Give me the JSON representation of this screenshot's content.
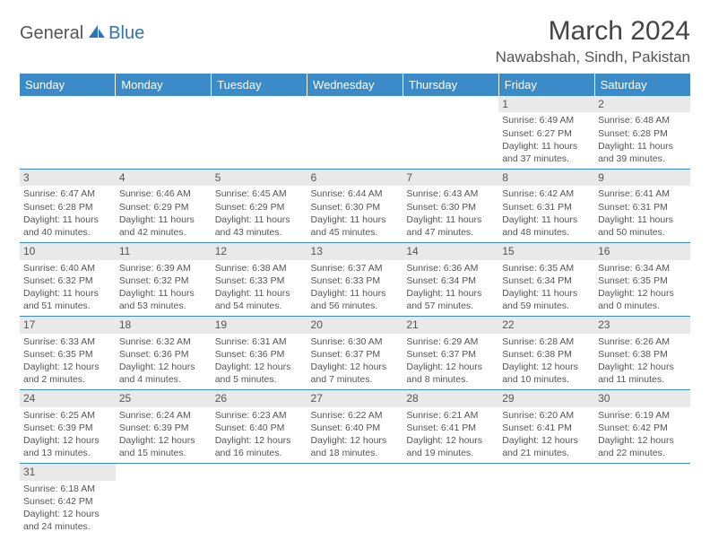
{
  "brand": {
    "part1": "General",
    "part2": "Blue"
  },
  "title": "March 2024",
  "location": "Nawabshah, Sindh, Pakistan",
  "colors": {
    "header_bg": "#3b8bc8",
    "header_fg": "#ffffff",
    "daynum_bg": "#e9e9e9",
    "text": "#555555",
    "rule": "#3b8bc8"
  },
  "dayHeaders": [
    "Sunday",
    "Monday",
    "Tuesday",
    "Wednesday",
    "Thursday",
    "Friday",
    "Saturday"
  ],
  "weeks": [
    [
      {
        "blank": true
      },
      {
        "blank": true
      },
      {
        "blank": true
      },
      {
        "blank": true
      },
      {
        "blank": true
      },
      {
        "num": "1",
        "sunrise": "6:49 AM",
        "sunset": "6:27 PM",
        "daylight": "11 hours and 37 minutes."
      },
      {
        "num": "2",
        "sunrise": "6:48 AM",
        "sunset": "6:28 PM",
        "daylight": "11 hours and 39 minutes."
      }
    ],
    [
      {
        "num": "3",
        "sunrise": "6:47 AM",
        "sunset": "6:28 PM",
        "daylight": "11 hours and 40 minutes."
      },
      {
        "num": "4",
        "sunrise": "6:46 AM",
        "sunset": "6:29 PM",
        "daylight": "11 hours and 42 minutes."
      },
      {
        "num": "5",
        "sunrise": "6:45 AM",
        "sunset": "6:29 PM",
        "daylight": "11 hours and 43 minutes."
      },
      {
        "num": "6",
        "sunrise": "6:44 AM",
        "sunset": "6:30 PM",
        "daylight": "11 hours and 45 minutes."
      },
      {
        "num": "7",
        "sunrise": "6:43 AM",
        "sunset": "6:30 PM",
        "daylight": "11 hours and 47 minutes."
      },
      {
        "num": "8",
        "sunrise": "6:42 AM",
        "sunset": "6:31 PM",
        "daylight": "11 hours and 48 minutes."
      },
      {
        "num": "9",
        "sunrise": "6:41 AM",
        "sunset": "6:31 PM",
        "daylight": "11 hours and 50 minutes."
      }
    ],
    [
      {
        "num": "10",
        "sunrise": "6:40 AM",
        "sunset": "6:32 PM",
        "daylight": "11 hours and 51 minutes."
      },
      {
        "num": "11",
        "sunrise": "6:39 AM",
        "sunset": "6:32 PM",
        "daylight": "11 hours and 53 minutes."
      },
      {
        "num": "12",
        "sunrise": "6:38 AM",
        "sunset": "6:33 PM",
        "daylight": "11 hours and 54 minutes."
      },
      {
        "num": "13",
        "sunrise": "6:37 AM",
        "sunset": "6:33 PM",
        "daylight": "11 hours and 56 minutes."
      },
      {
        "num": "14",
        "sunrise": "6:36 AM",
        "sunset": "6:34 PM",
        "daylight": "11 hours and 57 minutes."
      },
      {
        "num": "15",
        "sunrise": "6:35 AM",
        "sunset": "6:34 PM",
        "daylight": "11 hours and 59 minutes."
      },
      {
        "num": "16",
        "sunrise": "6:34 AM",
        "sunset": "6:35 PM",
        "daylight": "12 hours and 0 minutes."
      }
    ],
    [
      {
        "num": "17",
        "sunrise": "6:33 AM",
        "sunset": "6:35 PM",
        "daylight": "12 hours and 2 minutes."
      },
      {
        "num": "18",
        "sunrise": "6:32 AM",
        "sunset": "6:36 PM",
        "daylight": "12 hours and 4 minutes."
      },
      {
        "num": "19",
        "sunrise": "6:31 AM",
        "sunset": "6:36 PM",
        "daylight": "12 hours and 5 minutes."
      },
      {
        "num": "20",
        "sunrise": "6:30 AM",
        "sunset": "6:37 PM",
        "daylight": "12 hours and 7 minutes."
      },
      {
        "num": "21",
        "sunrise": "6:29 AM",
        "sunset": "6:37 PM",
        "daylight": "12 hours and 8 minutes."
      },
      {
        "num": "22",
        "sunrise": "6:28 AM",
        "sunset": "6:38 PM",
        "daylight": "12 hours and 10 minutes."
      },
      {
        "num": "23",
        "sunrise": "6:26 AM",
        "sunset": "6:38 PM",
        "daylight": "12 hours and 11 minutes."
      }
    ],
    [
      {
        "num": "24",
        "sunrise": "6:25 AM",
        "sunset": "6:39 PM",
        "daylight": "12 hours and 13 minutes."
      },
      {
        "num": "25",
        "sunrise": "6:24 AM",
        "sunset": "6:39 PM",
        "daylight": "12 hours and 15 minutes."
      },
      {
        "num": "26",
        "sunrise": "6:23 AM",
        "sunset": "6:40 PM",
        "daylight": "12 hours and 16 minutes."
      },
      {
        "num": "27",
        "sunrise": "6:22 AM",
        "sunset": "6:40 PM",
        "daylight": "12 hours and 18 minutes."
      },
      {
        "num": "28",
        "sunrise": "6:21 AM",
        "sunset": "6:41 PM",
        "daylight": "12 hours and 19 minutes."
      },
      {
        "num": "29",
        "sunrise": "6:20 AM",
        "sunset": "6:41 PM",
        "daylight": "12 hours and 21 minutes."
      },
      {
        "num": "30",
        "sunrise": "6:19 AM",
        "sunset": "6:42 PM",
        "daylight": "12 hours and 22 minutes."
      }
    ],
    [
      {
        "num": "31",
        "sunrise": "6:18 AM",
        "sunset": "6:42 PM",
        "daylight": "12 hours and 24 minutes."
      },
      {
        "blank": true
      },
      {
        "blank": true
      },
      {
        "blank": true
      },
      {
        "blank": true
      },
      {
        "blank": true
      },
      {
        "blank": true
      }
    ]
  ],
  "labels": {
    "sunrise": "Sunrise:",
    "sunset": "Sunset:",
    "daylight": "Daylight:"
  }
}
